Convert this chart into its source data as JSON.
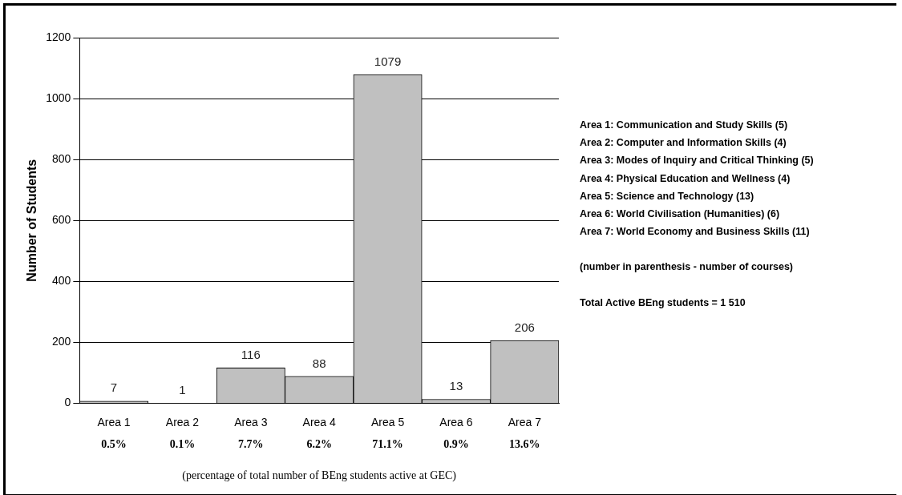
{
  "chart_data": {
    "type": "bar",
    "ylabel": "Number of Students",
    "xlabel": "(percentage of total number of BEng students active at GEC)",
    "categories": [
      "Area 1",
      "Area 2",
      "Area 3",
      "Area 4",
      "Area 5",
      "Area 6",
      "Area 7"
    ],
    "values": [
      7,
      1,
      116,
      88,
      1079,
      13,
      206
    ],
    "color": "#c0c0c0",
    "data_labels": true,
    "ylim": [
      0,
      1200
    ],
    "yticks": [
      0,
      200,
      400,
      600,
      800,
      1000,
      1200
    ],
    "grid": "y",
    "legend": false,
    "annotations": [
      "0.5%",
      "0.1%",
      "7.7%",
      "6.2%",
      "71.1%",
      "0.9%",
      "13.6%",
      "Area 1: Communication and Study Skills (5)",
      "Area 2: Computer and Information Skills (4)",
      "Area 3: Modes of Inquiry and Critical Thinking (5)",
      "Area 4: Physical Education and Wellness (4)",
      "Area 5: Science and Technology (13)",
      "Area 6: World Civilisation (Humanities) (6)",
      "Area 7: World Economy and Business Skills (11)",
      "(number in parenthesis - number of courses)",
      "Total Active BEng students = 1 510"
    ]
  }
}
